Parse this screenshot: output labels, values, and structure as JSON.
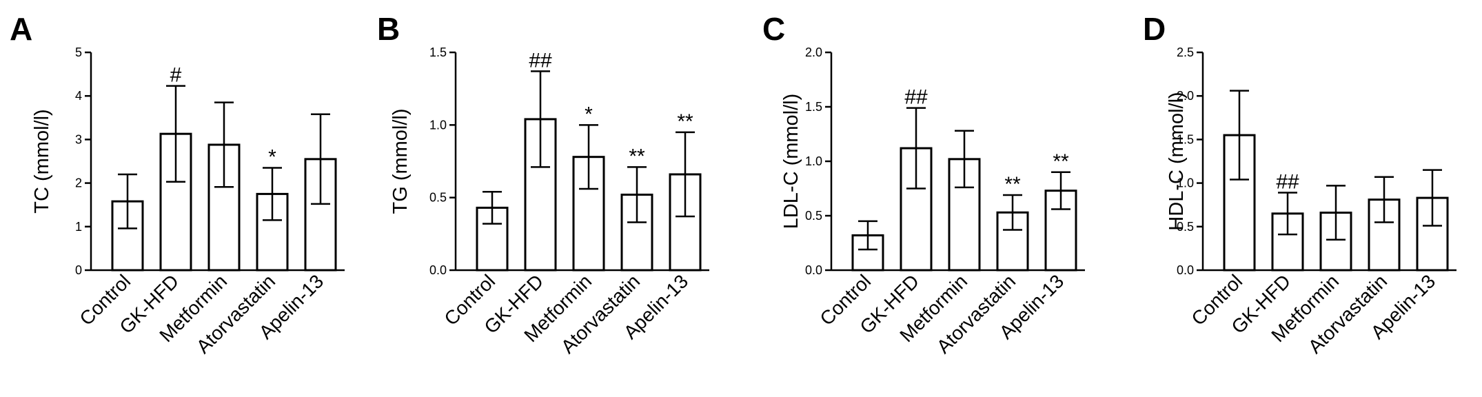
{
  "panels": [
    {
      "letter": "A",
      "chart_data": {
        "type": "bar",
        "categories": [
          "Control",
          "GK-HFD",
          "Metformin",
          "Atorvastatin",
          "Apelin-13"
        ],
        "values": [
          1.58,
          3.13,
          2.88,
          1.75,
          2.55
        ],
        "errors": [
          0.62,
          1.1,
          0.97,
          0.6,
          1.03
        ],
        "annotations": [
          "",
          "#",
          "",
          "*",
          ""
        ],
        "ylabel": "TC (mmol/l)",
        "ylim": [
          0,
          5
        ],
        "yticks": [
          "0",
          "1",
          "2",
          "3",
          "4",
          "5"
        ]
      }
    },
    {
      "letter": "B",
      "chart_data": {
        "type": "bar",
        "categories": [
          "Control",
          "GK-HFD",
          "Metformin",
          "Atorvastatin",
          "Apelin-13"
        ],
        "values": [
          0.43,
          1.04,
          0.78,
          0.52,
          0.66
        ],
        "errors": [
          0.11,
          0.33,
          0.22,
          0.19,
          0.29
        ],
        "annotations": [
          "",
          "##",
          "*",
          "**",
          "**"
        ],
        "ylabel": "TG (mmol/l)",
        "ylim": [
          0,
          1.5
        ],
        "yticks": [
          "0.0",
          "0.5",
          "1.0",
          "1.5"
        ]
      }
    },
    {
      "letter": "C",
      "chart_data": {
        "type": "bar",
        "categories": [
          "Control",
          "GK-HFD",
          "Metformin",
          "Atorvastatin",
          "Apelin-13"
        ],
        "values": [
          0.32,
          1.12,
          1.02,
          0.53,
          0.73
        ],
        "errors": [
          0.13,
          0.37,
          0.26,
          0.16,
          0.17
        ],
        "annotations": [
          "",
          "##",
          "",
          "**",
          "**"
        ],
        "ylabel": "LDL-C (mmol/l)",
        "ylim": [
          0,
          2.0
        ],
        "yticks": [
          "0.0",
          "0.5",
          "1.0",
          "1.5",
          "2.0"
        ]
      }
    },
    {
      "letter": "D",
      "chart_data": {
        "type": "bar",
        "categories": [
          "Control",
          "GK-HFD",
          "Metformin",
          "Atorvastatin",
          "Apelin-13"
        ],
        "values": [
          1.55,
          0.65,
          0.66,
          0.81,
          0.83
        ],
        "errors": [
          0.51,
          0.24,
          0.31,
          0.26,
          0.32
        ],
        "annotations": [
          "",
          "##",
          "",
          "",
          ""
        ],
        "ylabel": "HDL-C (mmol/l)",
        "ylim": [
          0,
          2.5
        ],
        "yticks": [
          "0.0",
          "0.5",
          "1.0",
          "1.5",
          "2.0",
          "2.5"
        ]
      }
    }
  ]
}
